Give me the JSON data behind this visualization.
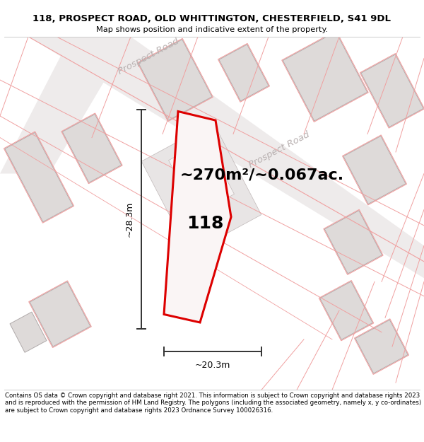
{
  "title": "118, PROSPECT ROAD, OLD WHITTINGTON, CHESTERFIELD, S41 9DL",
  "subtitle": "Map shows position and indicative extent of the property.",
  "area_label": "~270m²/~0.067ac.",
  "plot_number": "118",
  "width_label": "~20.3m",
  "height_label": "~28.3m",
  "footer": "Contains OS data © Crown copyright and database right 2021. This information is subject to Crown copyright and database rights 2023 and is reproduced with the permission of HM Land Registry. The polygons (including the associated geometry, namely x, y co-ordinates) are subject to Crown copyright and database rights 2023 Ordnance Survey 100026316.",
  "map_bg": "#f7f4f4",
  "building_fill": "#dedad9",
  "building_edge": "#b0aaaa",
  "pink": "#f0a0a0",
  "plot_outline": "#dd0000",
  "dim_color": "#333333",
  "road_label_color": "#b8b0b0",
  "title_fontsize": 9.5,
  "subtitle_fontsize": 8.2,
  "footer_fontsize": 6.2,
  "area_fontsize": 16,
  "plot_num_fontsize": 18,
  "dim_fontsize": 9
}
